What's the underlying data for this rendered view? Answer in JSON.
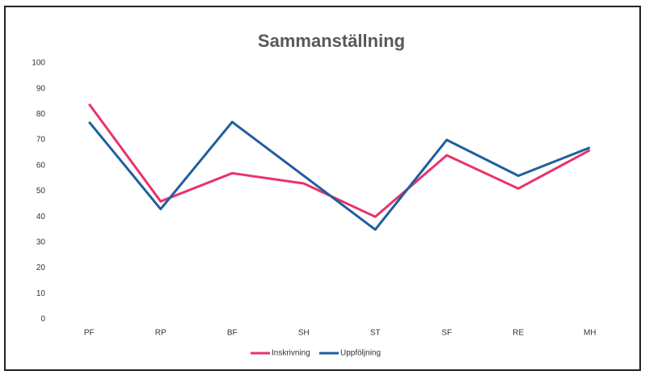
{
  "chart_data": {
    "type": "line",
    "title": "Sammanställning",
    "categories": [
      "PF",
      "RP",
      "BF",
      "SH",
      "ST",
      "SF",
      "RE",
      "MH"
    ],
    "series": [
      {
        "name": "Inskrivning",
        "color": "#e8336d",
        "values": [
          84,
          46,
          57,
          53,
          40,
          64,
          51,
          66
        ]
      },
      {
        "name": "Uppföljning",
        "color": "#1f5f9e",
        "values": [
          77,
          43,
          77,
          56,
          35,
          70,
          56,
          67
        ]
      }
    ],
    "ylim": [
      0,
      100
    ],
    "yticks": [
      0,
      10,
      20,
      30,
      40,
      50,
      60,
      70,
      80,
      90,
      100
    ],
    "grid": false,
    "legend": "bottom"
  }
}
